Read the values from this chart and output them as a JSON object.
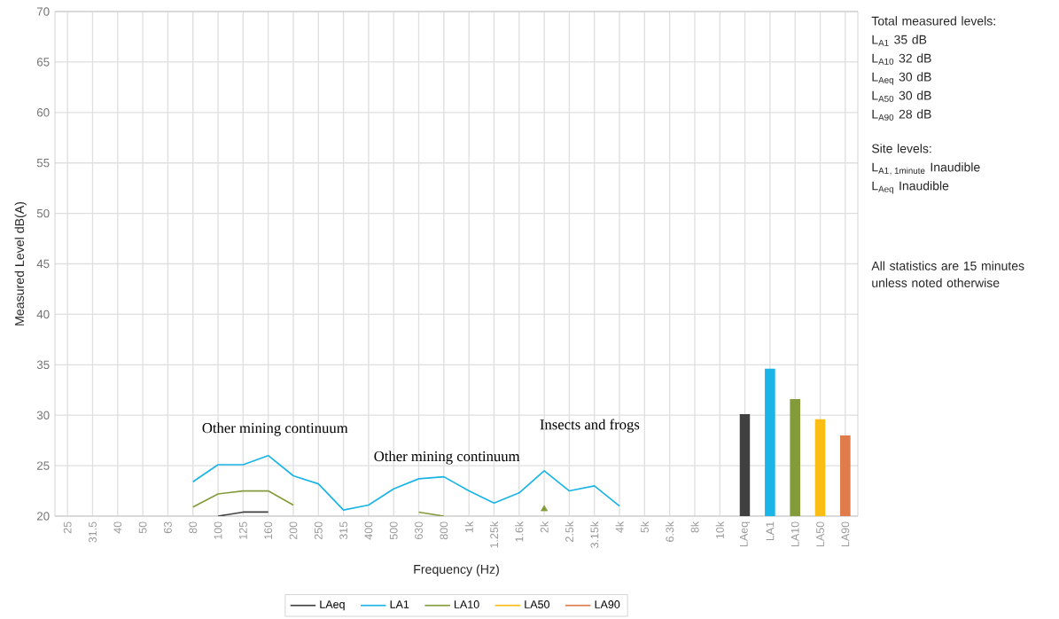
{
  "chart_data": {
    "type": "line",
    "xlabel": "Frequency (Hz)",
    "ylabel": "Measured Level dB(A)",
    "categories": [
      "25",
      "31.5",
      "40",
      "50",
      "63",
      "80",
      "100",
      "125",
      "160",
      "200",
      "250",
      "315",
      "400",
      "500",
      "630",
      "800",
      "1k",
      "1.25k",
      "1.6k",
      "2k",
      "2.5k",
      "3.15k",
      "4k",
      "5k",
      "6.3k",
      "8k",
      "10k",
      "LAeq",
      "LA1",
      "LA10",
      "LA50",
      "LA90"
    ],
    "ylim": [
      20,
      70
    ],
    "yticks": [
      20,
      25,
      30,
      35,
      40,
      45,
      50,
      55,
      60,
      65,
      70
    ],
    "grid": true,
    "legend": "bottom",
    "marker": "none",
    "line_style": "solid",
    "series": [
      {
        "name": "LAeq",
        "color": "#404040",
        "values": [
          null,
          null,
          null,
          null,
          null,
          null,
          20.0,
          20.4,
          20.4,
          null,
          null,
          null,
          null,
          null,
          null,
          null,
          null,
          null,
          null,
          null,
          null,
          null,
          null,
          null,
          null,
          null,
          null,
          null,
          null,
          null,
          null,
          null
        ]
      },
      {
        "name": "LA1",
        "color": "#1ab4e6",
        "values": [
          null,
          null,
          null,
          null,
          null,
          23.4,
          25.1,
          25.1,
          26.0,
          24.0,
          23.2,
          20.6,
          21.1,
          22.7,
          23.7,
          23.9,
          22.5,
          21.3,
          22.3,
          24.5,
          22.5,
          23.0,
          21.0,
          null,
          null,
          null,
          null,
          null,
          null,
          null,
          null,
          null
        ]
      },
      {
        "name": "LA10",
        "color": "#849b3c",
        "values": [
          null,
          null,
          null,
          null,
          null,
          20.9,
          22.2,
          22.5,
          22.5,
          21.1,
          null,
          null,
          null,
          null,
          20.4,
          20.0,
          null,
          null,
          null,
          20.7,
          null,
          null,
          null,
          null,
          null,
          null,
          null,
          null,
          null,
          null,
          null,
          null
        ]
      },
      {
        "name": "LA50",
        "color": "#fbbd14",
        "values": [
          null,
          null,
          null,
          null,
          null,
          null,
          null,
          null,
          null,
          null,
          null,
          null,
          null,
          null,
          null,
          null,
          null,
          null,
          null,
          null,
          null,
          null,
          null,
          null,
          null,
          null,
          null,
          null,
          null,
          null,
          null,
          null
        ]
      },
      {
        "name": "LA90",
        "color": "#e07b4c",
        "values": [
          null,
          null,
          null,
          null,
          null,
          null,
          null,
          null,
          null,
          null,
          null,
          null,
          null,
          null,
          null,
          null,
          null,
          null,
          null,
          null,
          null,
          null,
          null,
          null,
          null,
          null,
          null,
          null,
          null,
          null,
          null,
          null
        ]
      },
      {
        "type": "bar",
        "values": [
          null,
          null,
          null,
          null,
          null,
          null,
          null,
          null,
          null,
          null,
          null,
          null,
          null,
          null,
          null,
          null,
          null,
          null,
          null,
          null,
          null,
          null,
          null,
          null,
          null,
          null,
          null,
          30.1,
          34.6,
          31.6,
          29.6,
          28.0
        ],
        "colors": [
          null,
          null,
          null,
          null,
          null,
          null,
          null,
          null,
          null,
          null,
          null,
          null,
          null,
          null,
          null,
          null,
          null,
          null,
          null,
          null,
          null,
          null,
          null,
          null,
          null,
          null,
          null,
          "#404040",
          "#1ab4e6",
          "#849b3c",
          "#fbbd14",
          "#e07b4c"
        ]
      }
    ],
    "annotations": [
      "Other mining continuum",
      "Other mining continuum",
      "Insects and frogs",
      "Total measured levels:",
      "L$_{A1}$ 35 dB",
      "L$_{A10}$ 32 dB",
      "L$_{Aeq}$ 30 dB",
      "L$_{A50}$ 30 dB",
      "L$_{A90}$ 28 dB",
      "Site levels:",
      "\\mathrm{L}_{\\mathrm{A1,\\,1minute}}\\ \\mathrm{Inaudible}",
      "L$_{Aeq}$ Inaudible",
      "All statistics are 15 minutes unless noted otherwise"
    ]
  }
}
